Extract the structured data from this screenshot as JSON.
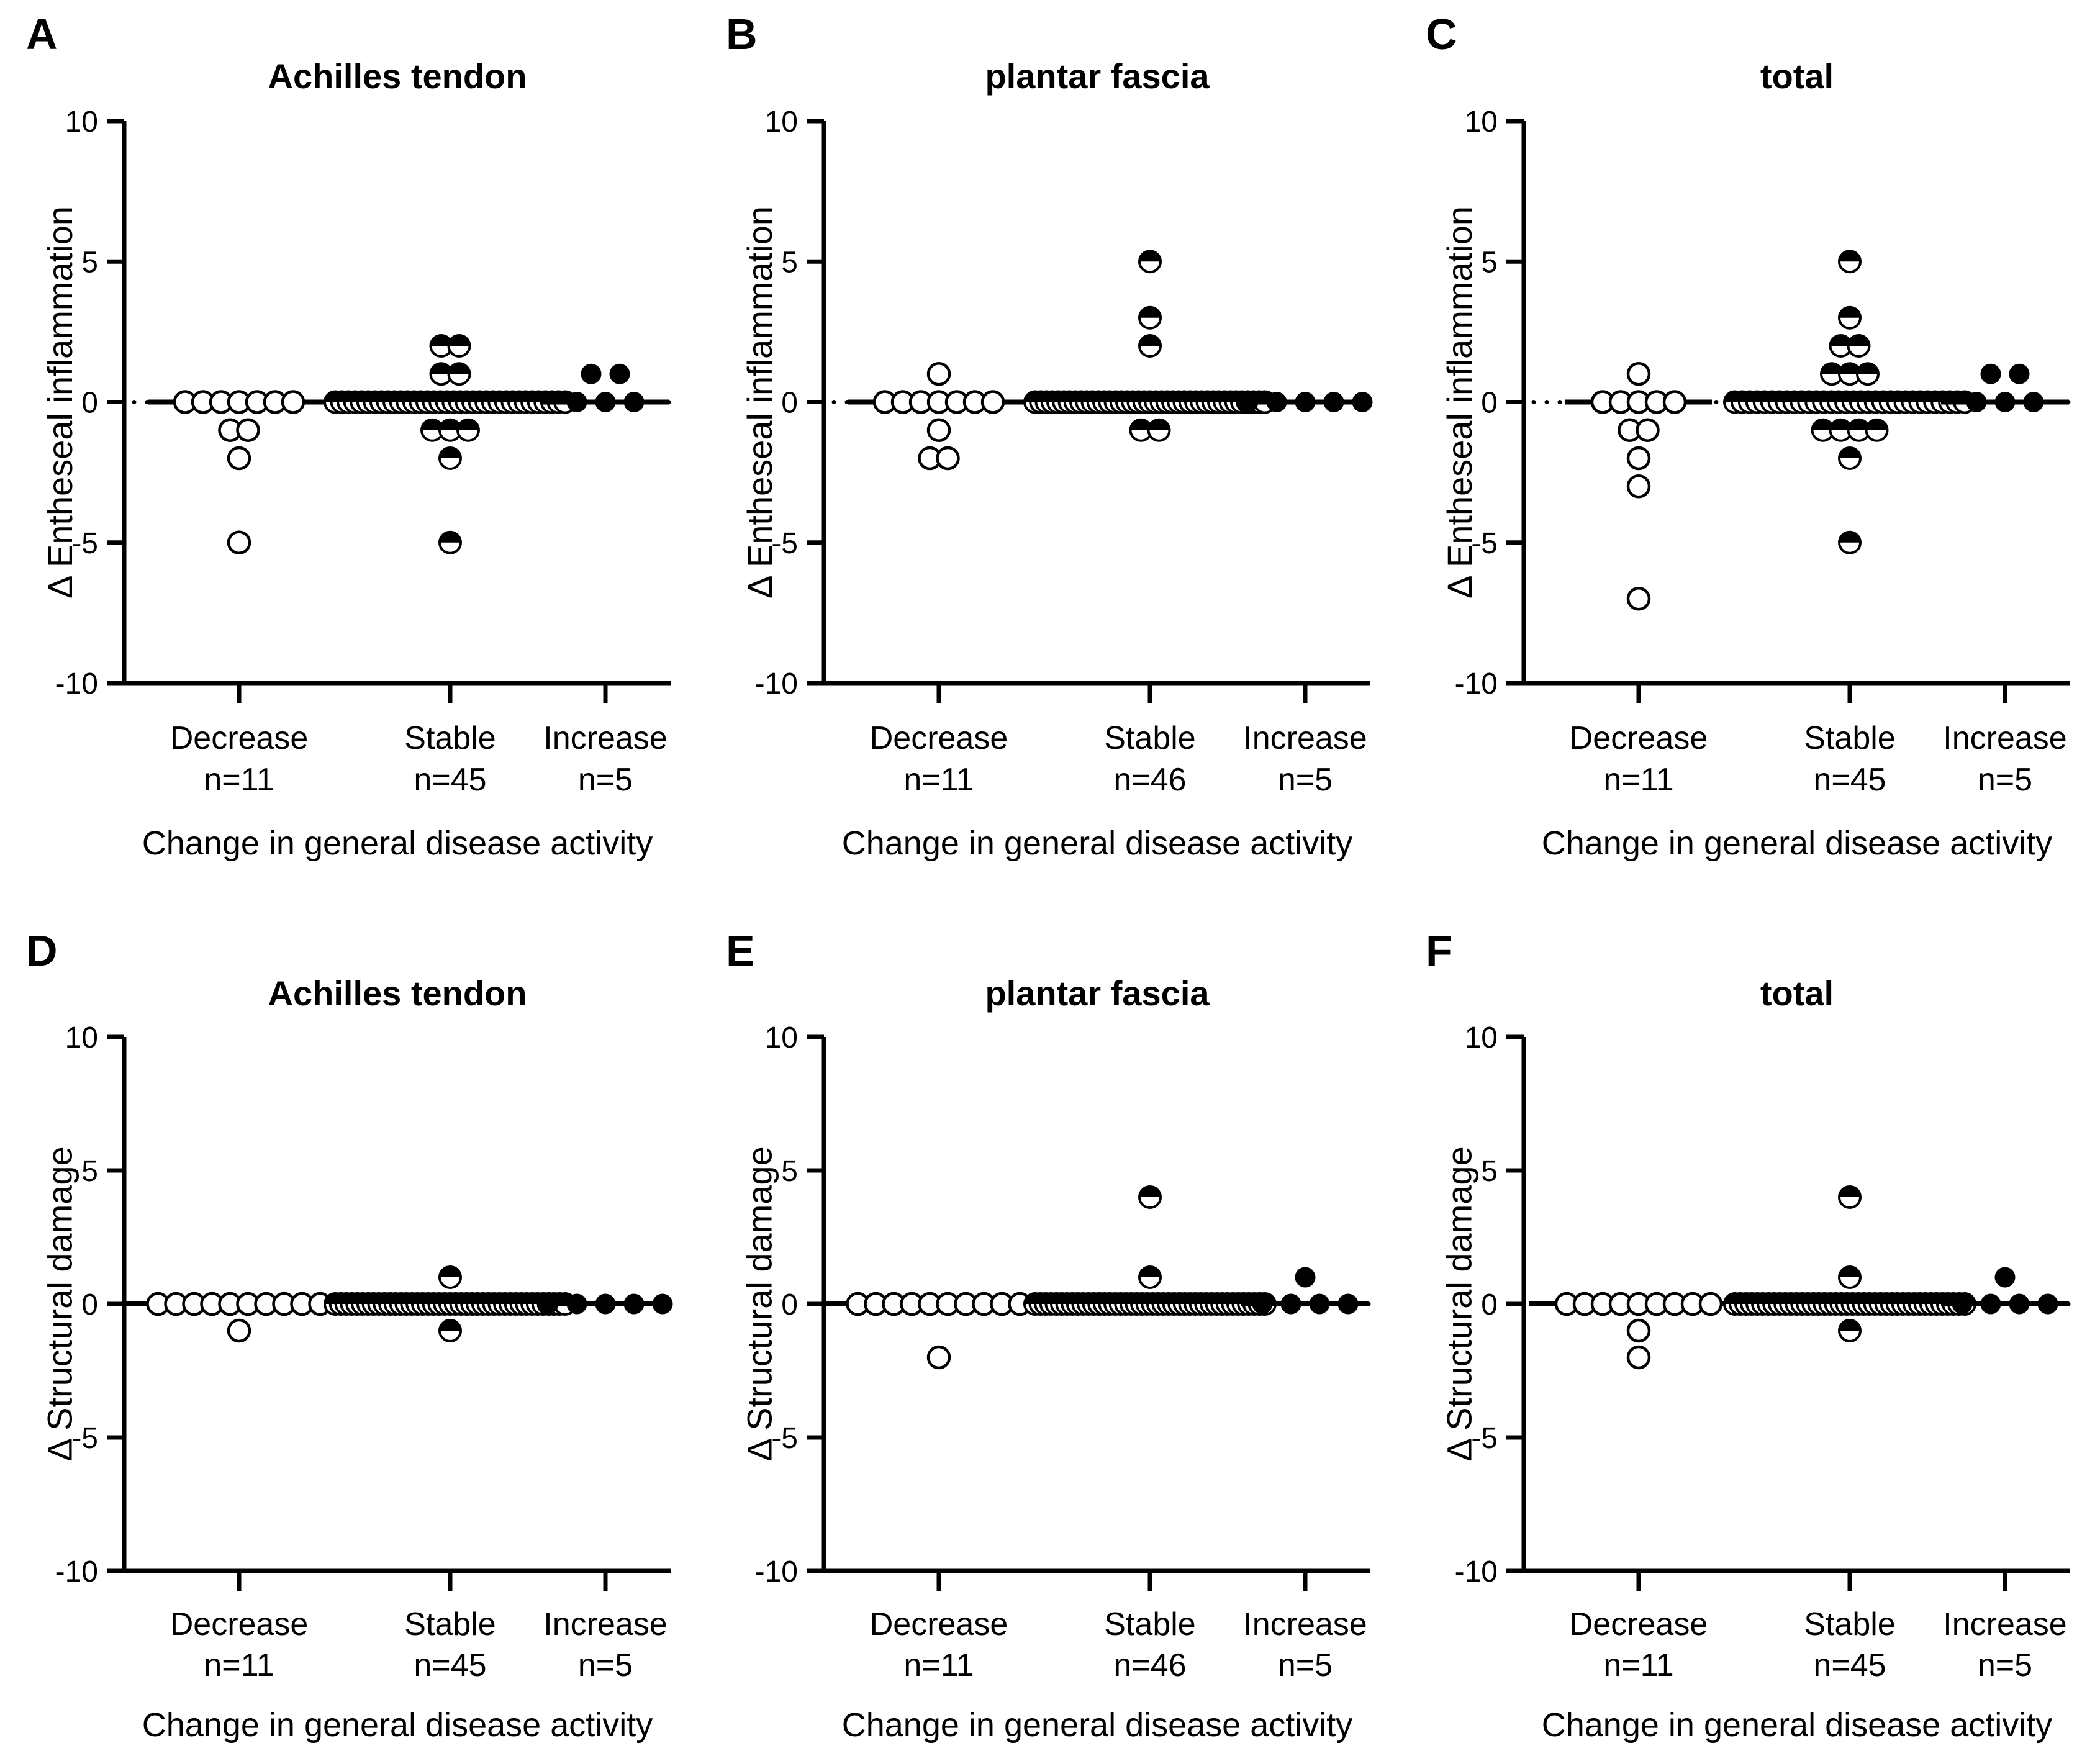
{
  "colors": {
    "foreground": "#000000",
    "background": "#ffffff"
  },
  "chart_data": [
    {
      "type": "scatter",
      "panel": "A",
      "title": "Achilles tendon",
      "ylabel": "Δ Entheseal inflammation",
      "xlabel": "Change in general disease activity",
      "ylim": [
        -10,
        10
      ],
      "yticks": [
        10,
        5,
        0,
        -5,
        -10
      ],
      "zero_line": "dotted",
      "grid": "off",
      "categories": [
        "Decrease",
        "Stable",
        "Increase"
      ],
      "category_counts": [
        "n=11",
        "n=45",
        "n=5"
      ],
      "series": [
        {
          "name": "Decrease",
          "marker": "open-circle",
          "median": 0,
          "points": [
            {
              "y": 0,
              "count": 7
            },
            {
              "y": -1,
              "count": 2
            },
            {
              "y": -2,
              "count": 1
            },
            {
              "y": -5,
              "count": 1
            }
          ]
        },
        {
          "name": "Stable",
          "marker": "half-filled-circle",
          "median": 0,
          "points": [
            {
              "y": 2,
              "count": 2
            },
            {
              "y": 1,
              "count": 2
            },
            {
              "y": 0,
              "count": 36
            },
            {
              "y": -1,
              "count": 3
            },
            {
              "y": -2,
              "count": 1
            },
            {
              "y": -5,
              "count": 1
            }
          ]
        },
        {
          "name": "Increase",
          "marker": "filled-circle",
          "median": 0,
          "points": [
            {
              "y": 1,
              "count": 2
            },
            {
              "y": 0,
              "count": 3
            }
          ]
        }
      ]
    },
    {
      "type": "scatter",
      "panel": "B",
      "title": "plantar fascia",
      "ylabel": "Δ Entheseal inflammation",
      "xlabel": "Change in general disease activity",
      "ylim": [
        -10,
        10
      ],
      "yticks": [
        10,
        5,
        0,
        -5,
        -10
      ],
      "zero_line": "dotted",
      "grid": "off",
      "categories": [
        "Decrease",
        "Stable",
        "Increase"
      ],
      "category_counts": [
        "n=11",
        "n=46",
        "n=5"
      ],
      "series": [
        {
          "name": "Decrease",
          "marker": "open-circle",
          "median": 0,
          "points": [
            {
              "y": 1,
              "count": 1
            },
            {
              "y": 0,
              "count": 7
            },
            {
              "y": -1,
              "count": 1
            },
            {
              "y": -2,
              "count": 2
            }
          ]
        },
        {
          "name": "Stable",
          "marker": "half-filled-circle",
          "median": 0,
          "points": [
            {
              "y": 5,
              "count": 1
            },
            {
              "y": 3,
              "count": 1
            },
            {
              "y": 2,
              "count": 1
            },
            {
              "y": 0,
              "count": 41
            },
            {
              "y": -1,
              "count": 2
            }
          ]
        },
        {
          "name": "Increase",
          "marker": "filled-circle",
          "median": 0,
          "points": [
            {
              "y": 0,
              "count": 5
            }
          ]
        }
      ]
    },
    {
      "type": "scatter",
      "panel": "C",
      "title": "total",
      "ylabel": "Δ Entheseal inflammation",
      "xlabel": "Change in general disease activity",
      "ylim": [
        -10,
        10
      ],
      "yticks": [
        10,
        5,
        0,
        -5,
        -10
      ],
      "zero_line": "dotted",
      "grid": "off",
      "categories": [
        "Decrease",
        "Stable",
        "Increase"
      ],
      "category_counts": [
        "n=11",
        "n=45",
        "n=5"
      ],
      "series": [
        {
          "name": "Decrease",
          "marker": "open-circle",
          "median": 0,
          "points": [
            {
              "y": 1,
              "count": 1
            },
            {
              "y": 0,
              "count": 5
            },
            {
              "y": -1,
              "count": 2
            },
            {
              "y": -2,
              "count": 1
            },
            {
              "y": -3,
              "count": 1
            },
            {
              "y": -7,
              "count": 1
            }
          ]
        },
        {
          "name": "Stable",
          "marker": "half-filled-circle",
          "median": 0,
          "points": [
            {
              "y": 5,
              "count": 1
            },
            {
              "y": 3,
              "count": 1
            },
            {
              "y": 2,
              "count": 2
            },
            {
              "y": 1,
              "count": 3
            },
            {
              "y": 0,
              "count": 32
            },
            {
              "y": -1,
              "count": 4
            },
            {
              "y": -2,
              "count": 1
            },
            {
              "y": -5,
              "count": 1
            }
          ]
        },
        {
          "name": "Increase",
          "marker": "filled-circle",
          "median": 0,
          "points": [
            {
              "y": 1,
              "count": 2
            },
            {
              "y": 0,
              "count": 3
            }
          ]
        }
      ]
    },
    {
      "type": "scatter",
      "panel": "D",
      "title": "Achilles tendon",
      "ylabel": "Δ Structural damage",
      "xlabel": "Change in general disease activity",
      "ylim": [
        -10,
        10
      ],
      "yticks": [
        10,
        5,
        0,
        -5,
        -10
      ],
      "zero_line": "dotted",
      "grid": "off",
      "categories": [
        "Decrease",
        "Stable",
        "Increase"
      ],
      "category_counts": [
        "n=11",
        "n=45",
        "n=5"
      ],
      "series": [
        {
          "name": "Decrease",
          "marker": "open-circle",
          "median": 0,
          "points": [
            {
              "y": 0,
              "count": 10
            },
            {
              "y": -1,
              "count": 1
            }
          ]
        },
        {
          "name": "Stable",
          "marker": "half-filled-circle",
          "median": 0,
          "points": [
            {
              "y": 1,
              "count": 1
            },
            {
              "y": 0,
              "count": 43
            },
            {
              "y": -1,
              "count": 1
            }
          ]
        },
        {
          "name": "Increase",
          "marker": "filled-circle",
          "median": 0,
          "points": [
            {
              "y": 0,
              "count": 5
            }
          ]
        }
      ]
    },
    {
      "type": "scatter",
      "panel": "E",
      "title": "plantar fascia",
      "ylabel": "Δ Structural damage",
      "xlabel": "Change in general disease activity",
      "ylim": [
        -10,
        10
      ],
      "yticks": [
        10,
        5,
        0,
        -5,
        -10
      ],
      "zero_line": "dotted",
      "grid": "off",
      "categories": [
        "Decrease",
        "Stable",
        "Increase"
      ],
      "category_counts": [
        "n=11",
        "n=46",
        "n=5"
      ],
      "series": [
        {
          "name": "Decrease",
          "marker": "open-circle",
          "median": 0,
          "points": [
            {
              "y": 0,
              "count": 10
            },
            {
              "y": -2,
              "count": 1
            }
          ]
        },
        {
          "name": "Stable",
          "marker": "half-filled-circle",
          "median": 0,
          "points": [
            {
              "y": 4,
              "count": 1
            },
            {
              "y": 1,
              "count": 1
            },
            {
              "y": 0,
              "count": 44
            }
          ]
        },
        {
          "name": "Increase",
          "marker": "filled-circle",
          "median": 0,
          "points": [
            {
              "y": 1,
              "count": 1
            },
            {
              "y": 0,
              "count": 4
            }
          ]
        }
      ]
    },
    {
      "type": "scatter",
      "panel": "F",
      "title": "total",
      "ylabel": "Δ Structural damage",
      "xlabel": "Change in general disease activity",
      "ylim": [
        -10,
        10
      ],
      "yticks": [
        10,
        5,
        0,
        -5,
        -10
      ],
      "zero_line": "dotted",
      "grid": "off",
      "categories": [
        "Decrease",
        "Stable",
        "Increase"
      ],
      "category_counts": [
        "n=11",
        "n=45",
        "n=5"
      ],
      "series": [
        {
          "name": "Decrease",
          "marker": "open-circle",
          "median": 0,
          "points": [
            {
              "y": 0,
              "count": 9
            },
            {
              "y": -1,
              "count": 1
            },
            {
              "y": -2,
              "count": 1
            }
          ]
        },
        {
          "name": "Stable",
          "marker": "half-filled-circle",
          "median": 0,
          "points": [
            {
              "y": 4,
              "count": 1
            },
            {
              "y": 1,
              "count": 1
            },
            {
              "y": 0,
              "count": 42
            },
            {
              "y": -1,
              "count": 1
            }
          ]
        },
        {
          "name": "Increase",
          "marker": "filled-circle",
          "median": 0,
          "points": [
            {
              "y": 1,
              "count": 1
            },
            {
              "y": 0,
              "count": 4
            }
          ]
        }
      ]
    }
  ]
}
